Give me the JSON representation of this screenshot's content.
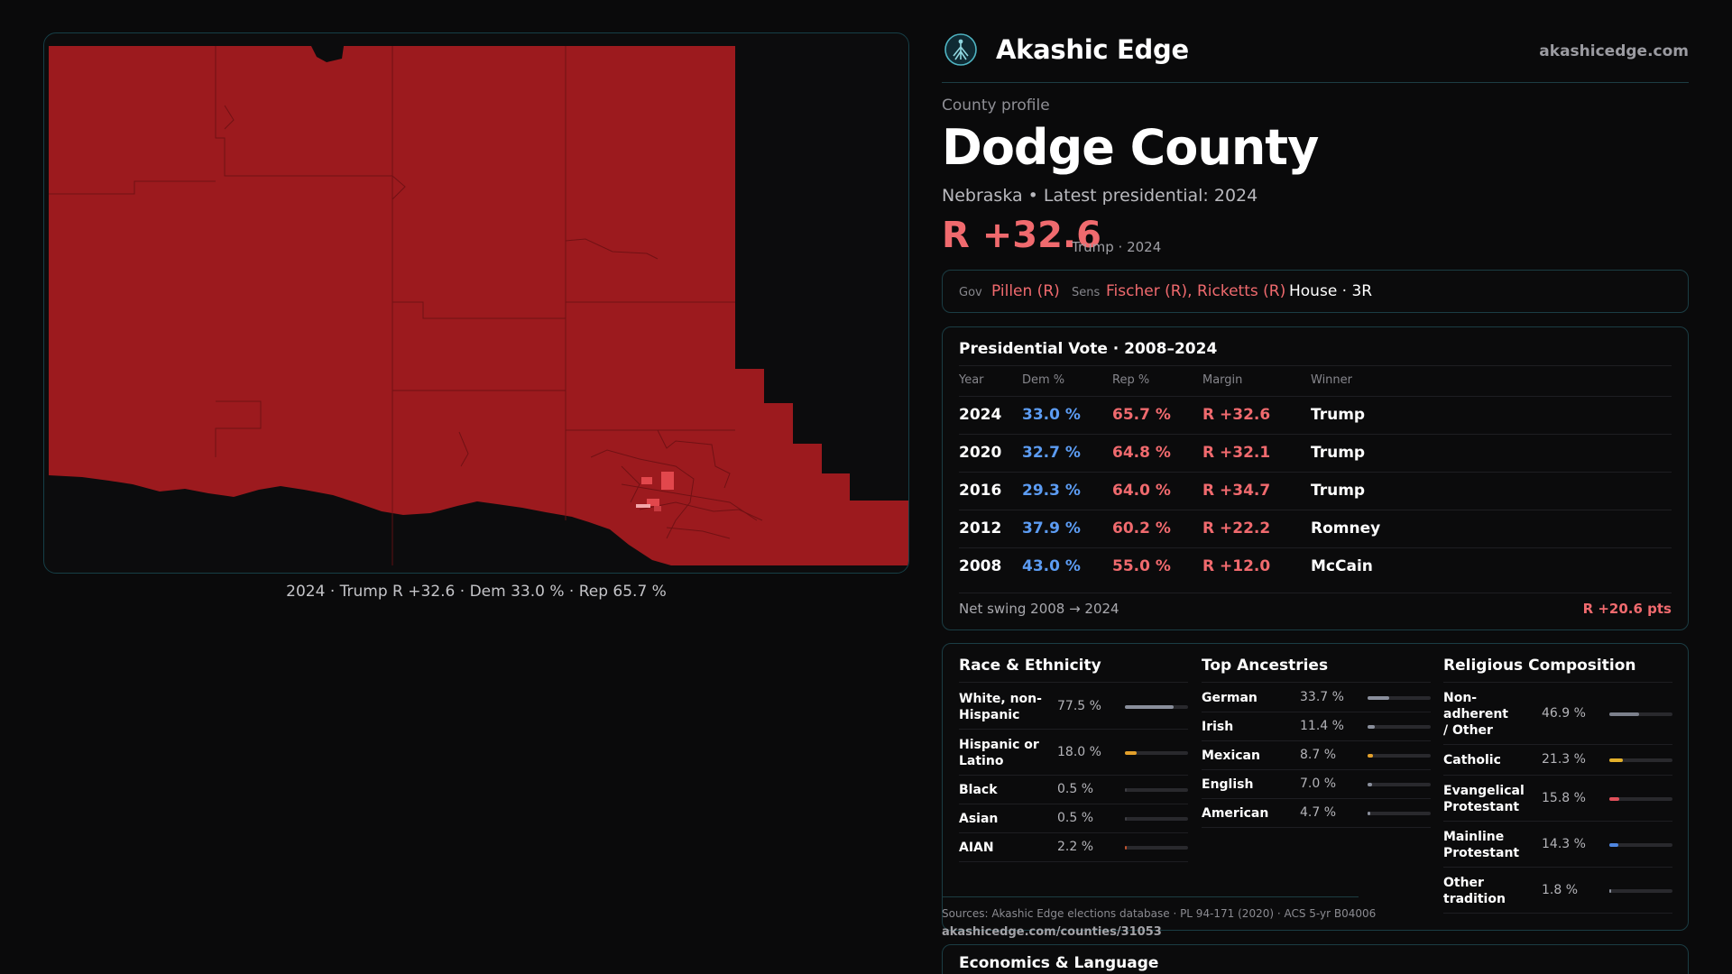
{
  "map": {
    "caption": "2024 · Trump R +32.6 · Dem 33.0 % · Rep 65.7 %",
    "fill_color": "#9c1a1e",
    "accent_color": "#e2474c",
    "light_color": "#f3a7aa"
  },
  "header": {
    "brand": "Akashic Edge",
    "site": "akashicedge.com",
    "logo_icon": "compass-tree-icon"
  },
  "profile": {
    "eyebrow": "County profile",
    "title": "Dodge County",
    "subtitle": "Nebraska • Latest presidential: 2024",
    "margin": "R +32.6",
    "margin_note": "Trump · 2024"
  },
  "officials": {
    "gov_label": "Gov",
    "gov": "Pillen (R)",
    "sens_label": "Sens",
    "sens": "Fischer (R), Ricketts (R)",
    "house": "House · 3R"
  },
  "results": {
    "title": "Presidential Vote · 2008–2024",
    "columns": [
      "Year",
      "Dem %",
      "Rep %",
      "Margin",
      "Winner"
    ],
    "rows": [
      {
        "year": "2024",
        "dem": "33.0 %",
        "rep": "65.7 %",
        "margin": "R +32.6",
        "winner": "Trump"
      },
      {
        "year": "2020",
        "dem": "32.7 %",
        "rep": "64.8 %",
        "margin": "R +32.1",
        "winner": "Trump"
      },
      {
        "year": "2016",
        "dem": "29.3 %",
        "rep": "64.0 %",
        "margin": "R +34.7",
        "winner": "Trump"
      },
      {
        "year": "2012",
        "dem": "37.9 %",
        "rep": "60.2 %",
        "margin": "R +22.2",
        "winner": "Romney"
      },
      {
        "year": "2008",
        "dem": "43.0 %",
        "rep": "55.0 %",
        "margin": "R +12.0",
        "winner": "McCain"
      }
    ],
    "swing_label": "Net swing 2008 → 2024",
    "swing_value": "R +20.6 pts"
  },
  "demographics": {
    "race": {
      "title": "Race & Ethnicity",
      "items": [
        {
          "label": "White, non-Hispanic",
          "pct": "77.5 %",
          "value": 77.5,
          "color": "#8a8f9c"
        },
        {
          "label": "Hispanic or Latino",
          "pct": "18.0 %",
          "value": 18.0,
          "color": "#e3a02b"
        },
        {
          "label": "Black",
          "pct": "0.5 %",
          "value": 0.5,
          "color": "#3f3f44"
        },
        {
          "label": "Asian",
          "pct": "0.5 %",
          "value": 0.5,
          "color": "#3f3f44"
        },
        {
          "label": "AIAN",
          "pct": "2.2 %",
          "value": 2.2,
          "color": "#c0532e"
        }
      ]
    },
    "ancestry": {
      "title": "Top Ancestries",
      "items": [
        {
          "label": "German",
          "pct": "33.7 %",
          "value": 33.7,
          "color": "#8a8f9c"
        },
        {
          "label": "Irish",
          "pct": "11.4 %",
          "value": 11.4,
          "color": "#8a8f9c"
        },
        {
          "label": "Mexican",
          "pct": "8.7 %",
          "value": 8.7,
          "color": "#e3a02b"
        },
        {
          "label": "English",
          "pct": "7.0 %",
          "value": 7.0,
          "color": "#8a8f9c"
        },
        {
          "label": "American",
          "pct": "4.7 %",
          "value": 4.7,
          "color": "#8a8f9c"
        }
      ]
    },
    "religion": {
      "title": "Religious Composition",
      "items": [
        {
          "label": "Non-adherent / Other",
          "pct": "46.9 %",
          "value": 46.9,
          "color": "#7c808c"
        },
        {
          "label": "Catholic",
          "pct": "21.3 %",
          "value": 21.3,
          "color": "#e3b02b"
        },
        {
          "label": "Evangelical Protestant",
          "pct": "15.8 %",
          "value": 15.8,
          "color": "#e0505a"
        },
        {
          "label": "Mainline Protestant",
          "pct": "14.3 %",
          "value": 14.3,
          "color": "#4f86e0"
        },
        {
          "label": "Other tradition",
          "pct": "1.8 %",
          "value": 1.8,
          "color": "#8a8f9c"
        }
      ]
    }
  },
  "sources": {
    "text": "Sources: Akashic Edge elections database · PL 94-171 (2020) · ACS 5-yr B04006",
    "url": "akashicedge.com/counties/31053"
  },
  "economics": {
    "title": "Economics & Language"
  }
}
